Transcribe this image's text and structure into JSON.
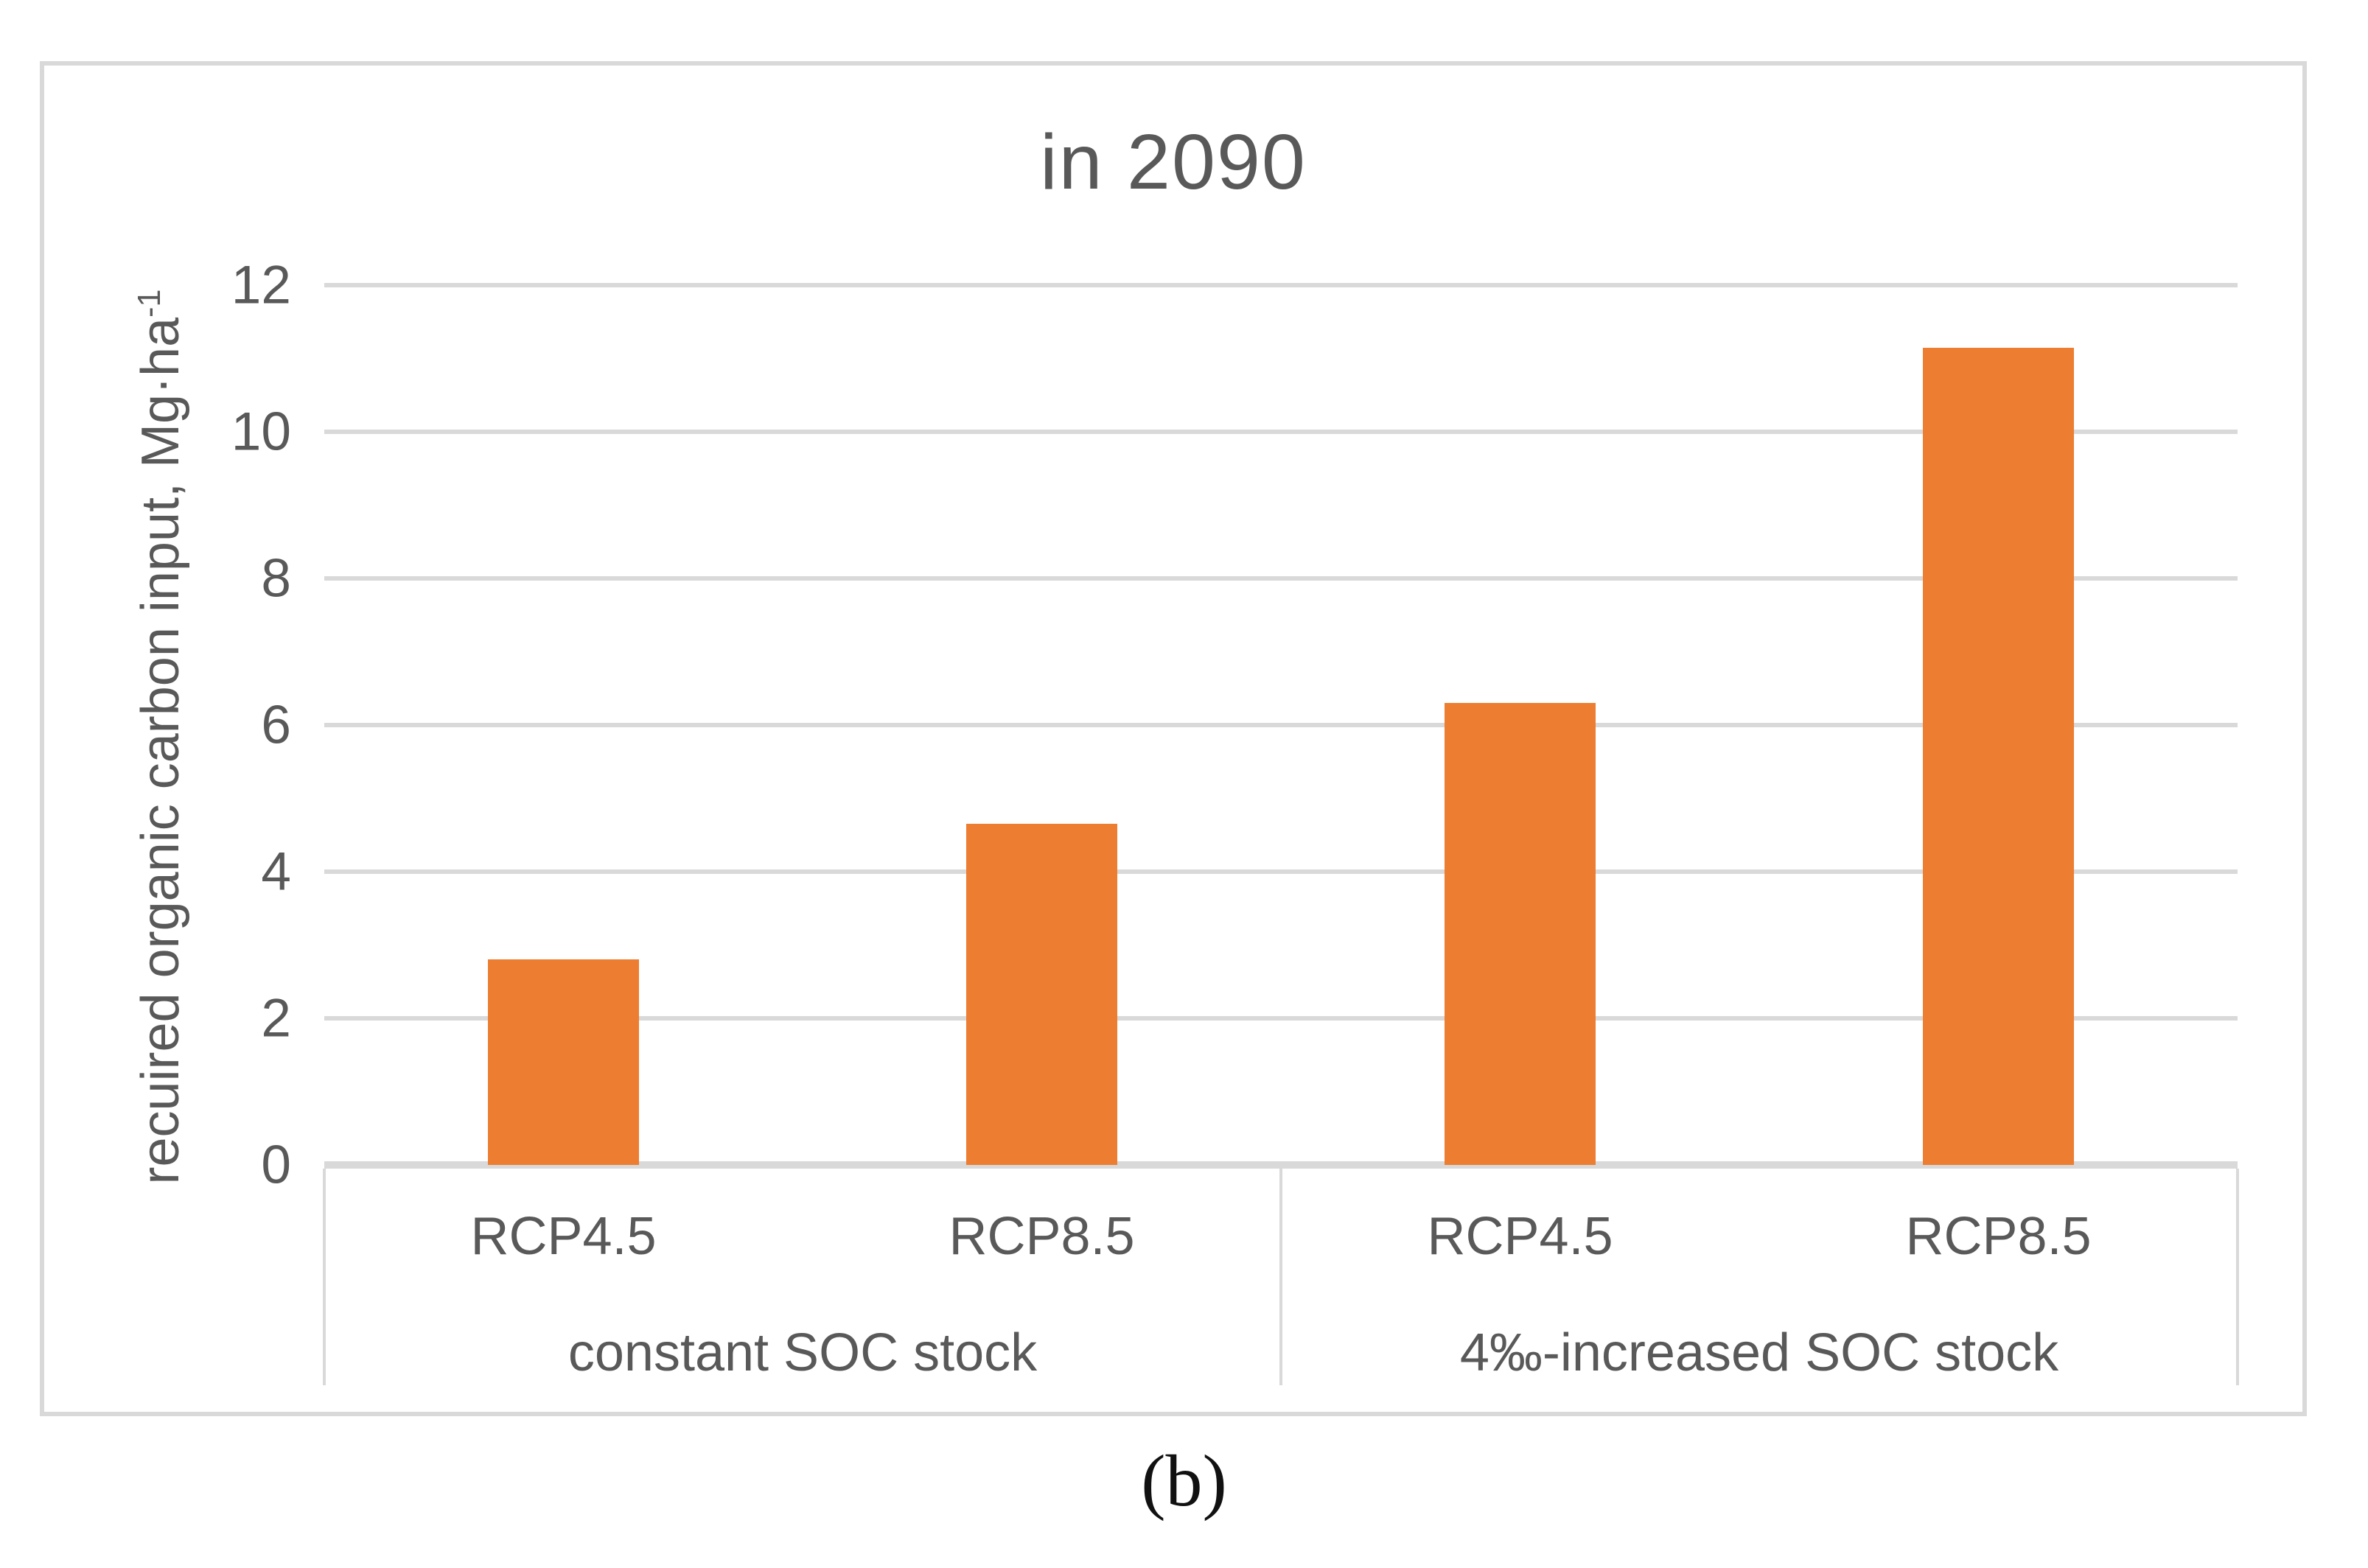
{
  "figure": {
    "caption": "(b)"
  },
  "chart_data": {
    "type": "bar",
    "title": "in 2090",
    "ylabel": "recuired organic carbon input, Mg·ha",
    "ylabel_sup": "-1",
    "xlabel": "",
    "ylim": [
      0,
      12
    ],
    "yticks": [
      0,
      2,
      4,
      6,
      8,
      10,
      12
    ],
    "grid": true,
    "legend": false,
    "categories": [
      "RCP4.5",
      "RCP8.5",
      "RCP4.5",
      "RCP8.5"
    ],
    "values": [
      2.8,
      4.65,
      6.3,
      11.15
    ],
    "groups": [
      {
        "label": "constant SOC stock",
        "categories": [
          "RCP4.5",
          "RCP8.5"
        ],
        "values": [
          2.8,
          4.65
        ]
      },
      {
        "label": "4‰-increased SOC stock",
        "categories": [
          "RCP4.5",
          "RCP8.5"
        ],
        "values": [
          6.3,
          11.15
        ]
      }
    ],
    "colors": {
      "bar": "#ed7d31",
      "gridline": "#d9d9d9",
      "text": "#595959",
      "figure_border": "#d9d9d9"
    }
  }
}
